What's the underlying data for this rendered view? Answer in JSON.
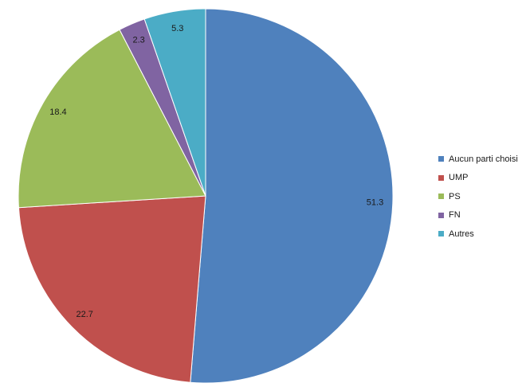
{
  "chart_data": {
    "type": "pie",
    "title": "",
    "categories": [
      "Aucun parti choisi",
      "UMP",
      "PS",
      "FN",
      "Autres"
    ],
    "values": [
      51.3,
      22.7,
      18.4,
      2.3,
      5.3
    ],
    "data_labels": [
      "51.3",
      "22.7",
      "18.4",
      "2.3",
      "5.3"
    ],
    "colors": [
      "#4F81BD",
      "#C0504D",
      "#9BBB59",
      "#8064A2",
      "#4BACC6"
    ],
    "start_angle": "12 o'clock",
    "direction": "clockwise",
    "legend_position": "right"
  }
}
